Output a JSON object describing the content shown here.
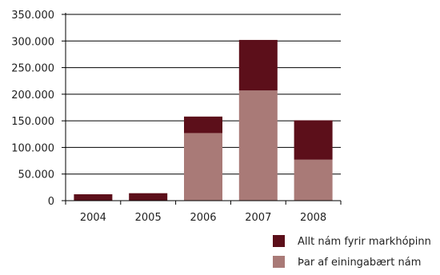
{
  "chart_data": {
    "type": "bar",
    "stacked": true,
    "categories": [
      "2004",
      "2005",
      "2006",
      "2007",
      "2008"
    ],
    "series": [
      {
        "name": "Þar af einingabært nám",
        "values": [
          0,
          0,
          127000,
          207000,
          77000
        ],
        "color": "#a97a77"
      },
      {
        "name": "Allt nám fyrir markhópinn",
        "values": [
          12000,
          14000,
          31000,
          95000,
          74000
        ],
        "color": "#5c0f1a"
      }
    ],
    "yticks": [
      "0",
      "50.000",
      "100.000",
      "150.000",
      "200.000",
      "250.000",
      "300.000",
      "350.000"
    ],
    "ylim": [
      0,
      350000
    ],
    "grid": true,
    "legend": [
      {
        "label": "Allt nám fyrir markhópinn",
        "color": "#5c0f1a"
      },
      {
        "label": "Þar af einingabært nám",
        "color": "#a97a77"
      }
    ],
    "legend_position": "bottom-right"
  }
}
